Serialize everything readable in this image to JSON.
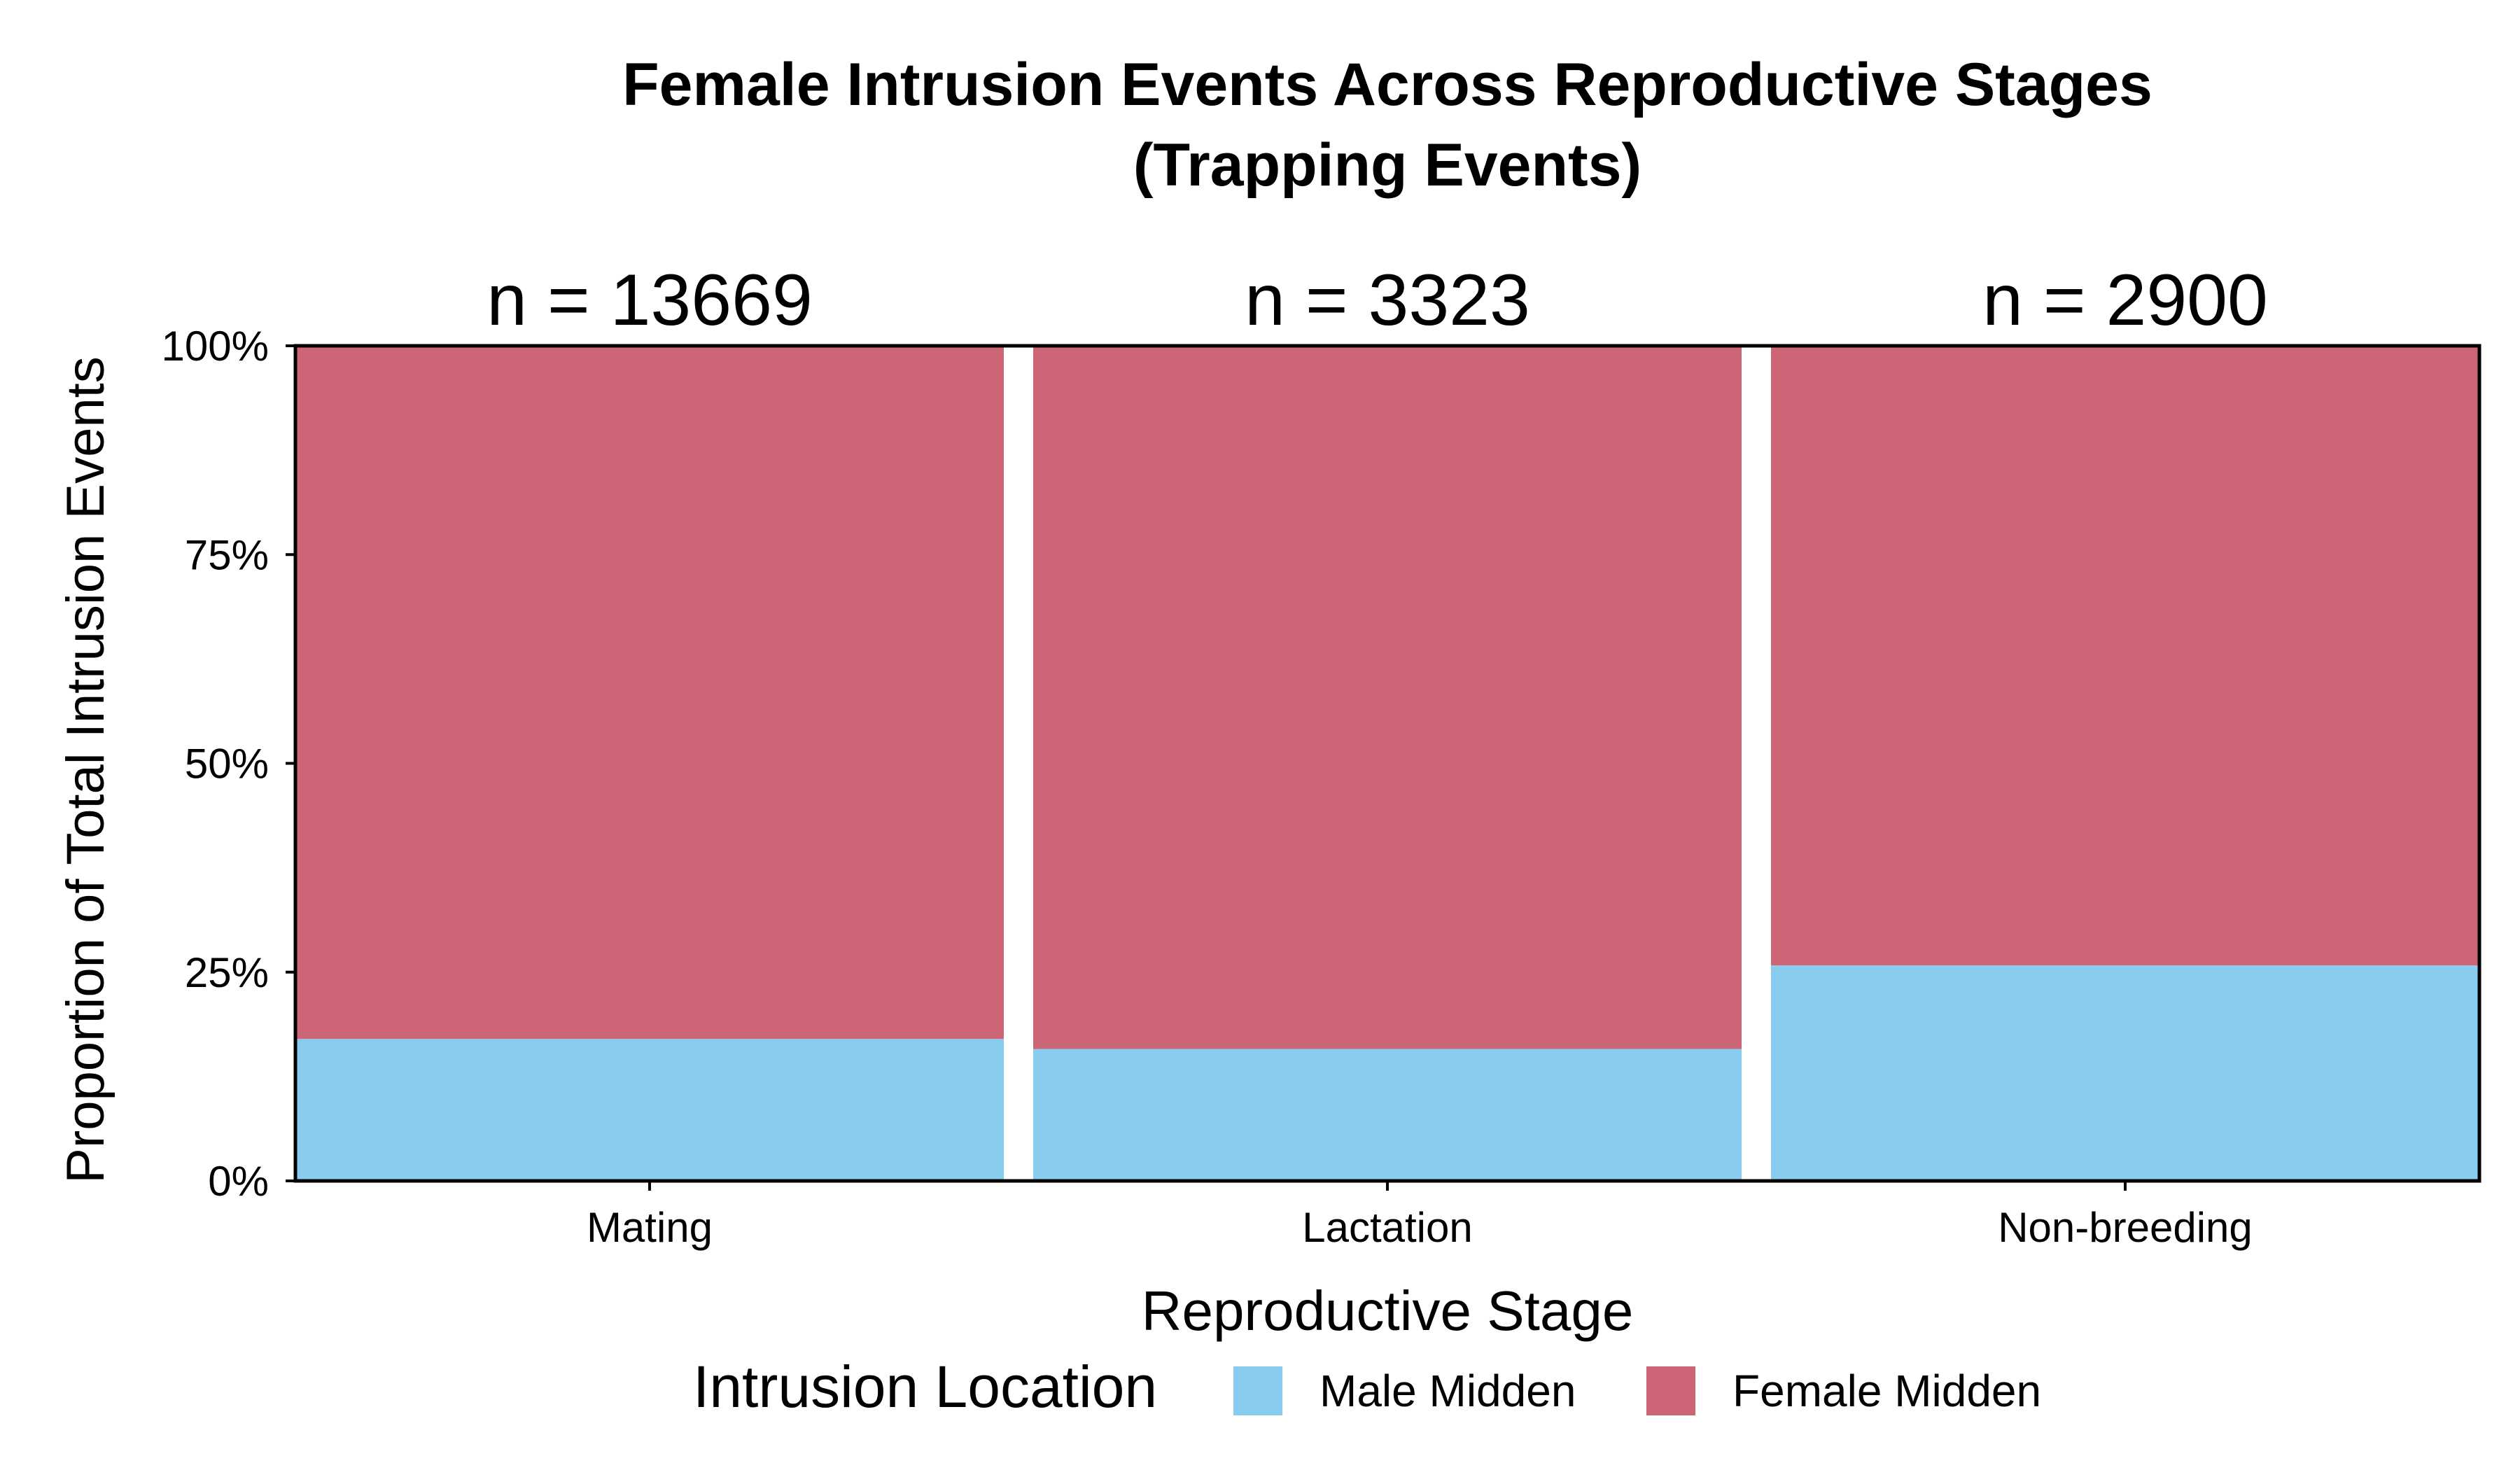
{
  "chart_data": {
    "type": "bar",
    "stacked": "proportional",
    "title": "Female Intrusion Events Across Reproductive Stages",
    "subtitle": "(Trapping Events)",
    "xlabel": "Reproductive Stage",
    "ylabel": "Proportion of Total Intrusion Events",
    "ylim": [
      0,
      1
    ],
    "yticks": [
      0,
      0.25,
      0.5,
      0.75,
      1
    ],
    "ytick_labels": [
      "0%",
      "25%",
      "50%",
      "75%",
      "100%"
    ],
    "categories": [
      "Mating",
      "Lactation",
      "Non-breeding"
    ],
    "n_labels": [
      "n = 13669",
      "n = 3323",
      "n = 2900"
    ],
    "series": [
      {
        "name": "Male Midden",
        "values": [
          0.17,
          0.158,
          0.258
        ],
        "color": "#88CCEE"
      },
      {
        "name": "Female Midden",
        "values": [
          0.83,
          0.842,
          0.742
        ],
        "color": "#CC6677"
      }
    ],
    "legend": {
      "title": "Intrusion Location",
      "placement": "bottom"
    },
    "grid": false
  }
}
